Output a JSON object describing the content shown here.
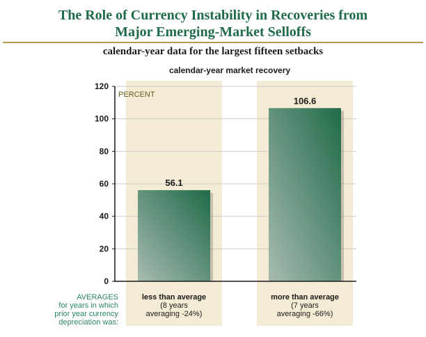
{
  "header": {
    "title_line1": "The Role of Currency Instability in Recoveries from",
    "title_line2": "Major Emerging-Market Selloffs",
    "subtitle": "calendar-year data for the largest fifteen setbacks"
  },
  "row_header": {
    "line1": "AVERAGES",
    "line2": "for years in which",
    "line3": "prior year currency",
    "line4": "depreciation was:"
  },
  "colors": {
    "title": "#1f6a49",
    "panel": "#f3ebd3",
    "bar_dark": "#1f6a49",
    "bar_light": "#a8bbb0",
    "rule": "#b39a55"
  },
  "chart_data": {
    "type": "bar",
    "title": "calendar-year market recovery",
    "ylabel": "PERCENT",
    "xlabel": "",
    "ylim": [
      0,
      120
    ],
    "yticks": [
      0,
      20,
      40,
      60,
      80,
      100,
      120
    ],
    "grid": true,
    "categories": [
      "less than average",
      "more than average"
    ],
    "category_notes": [
      [
        "(8 years",
        "averaging -24%)"
      ],
      [
        "(7 years",
        "averaging -66%)"
      ]
    ],
    "values": [
      56.1,
      106.6
    ],
    "data_labels": [
      "56.1",
      "106.6"
    ]
  }
}
